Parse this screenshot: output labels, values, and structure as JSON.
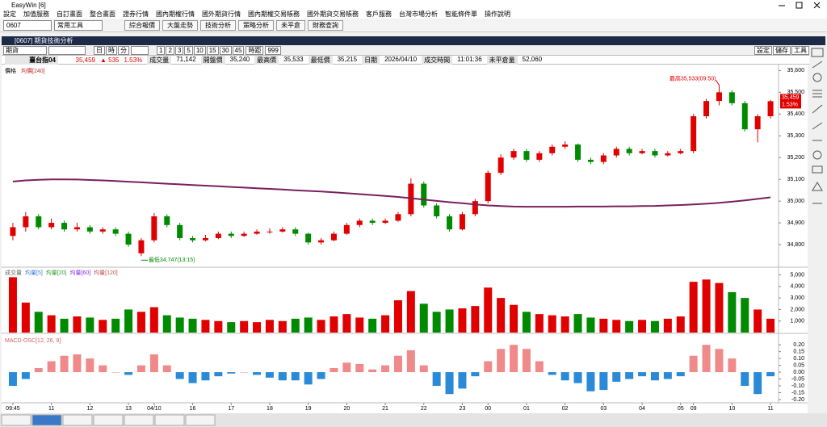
{
  "window": {
    "title": "EasyWin [6]"
  },
  "menu": [
    "設定",
    "加值服務",
    "自訂畫面",
    "整合畫面",
    "證券行情",
    "國內期權行情",
    "國外期貨行情",
    "國內期權交易帳務",
    "國外期貨交易帳務",
    "客戶服務",
    "台灣市場分析",
    "智能條件單",
    "操作說明"
  ],
  "toolbar": {
    "code": "0607",
    "tool": "常用工具",
    "buttons": [
      "綜合報價",
      "大盤走勢",
      "技術分析",
      "策略分析",
      "未平倉",
      "財務查詢"
    ]
  },
  "subwindow": {
    "title": "[0607] 期貨技術分析",
    "kind": "期貨",
    "units": [
      "日",
      "時",
      "分"
    ],
    "periods": [
      "1",
      "2",
      "3",
      "5",
      "10",
      "15",
      "30",
      "45"
    ],
    "span_label": "時距",
    "span": "999",
    "right_buttons": [
      "設定",
      "儲存",
      "工具"
    ]
  },
  "quote": {
    "symbol": "臺台指04",
    "price": "35,459",
    "change": "▲ 535",
    "percent": "1.53%",
    "fields": [
      {
        "label": "成交量",
        "value": "71,142"
      },
      {
        "label": "開盤價",
        "value": "35,240"
      },
      {
        "label": "最高價",
        "value": "35,533"
      },
      {
        "label": "最低價",
        "value": "35,215"
      },
      {
        "label": "日期",
        "value": "2026/04/10"
      },
      {
        "label": "成交時間",
        "value": "11:01:36"
      },
      {
        "label": "未平倉量",
        "value": "52,060"
      }
    ]
  },
  "chart_data": [
    {
      "type": "candlestick",
      "title": "價格",
      "up_color": "#e00000",
      "down_color": "#008a00",
      "categories": [
        "09:45",
        null,
        null,
        "11",
        null,
        null,
        "12",
        null,
        null,
        "13",
        null,
        "04/10",
        null,
        null,
        "16",
        null,
        null,
        "17",
        null,
        null,
        "18",
        null,
        null,
        "19",
        null,
        null,
        "20",
        null,
        null,
        "21",
        null,
        null,
        "22",
        null,
        null,
        "23",
        null,
        "00",
        null,
        null,
        "01",
        null,
        null,
        "02",
        null,
        null,
        "03",
        null,
        null,
        "04",
        null,
        null,
        "05",
        "09",
        null,
        null,
        "10",
        null,
        null,
        "11"
      ],
      "open": [
        34840,
        34880,
        34930,
        34880,
        34900,
        34870,
        34880,
        34860,
        34870,
        34850,
        34760,
        34820,
        34930,
        34890,
        34830,
        34820,
        34830,
        34850,
        34840,
        34850,
        34860,
        34860,
        34870,
        34850,
        34810,
        34820,
        34850,
        34890,
        34910,
        34900,
        34910,
        34940,
        35080,
        34980,
        34930,
        34870,
        34940,
        35000,
        35130,
        35200,
        35230,
        35190,
        35220,
        35250,
        35260,
        35190,
        35180,
        35210,
        35240,
        35220,
        35230,
        35210,
        35220,
        35230,
        35390,
        35460,
        35500,
        35450,
        35330,
        35390
      ],
      "high": [
        34900,
        34950,
        34940,
        34920,
        34910,
        34900,
        34890,
        34880,
        34880,
        34860,
        34830,
        34945,
        34940,
        34900,
        34840,
        34845,
        34860,
        34860,
        34860,
        34870,
        34875,
        34880,
        34880,
        34855,
        34830,
        34860,
        34900,
        34920,
        34920,
        34920,
        34950,
        35105,
        35090,
        34990,
        34940,
        34950,
        35010,
        35140,
        35215,
        35240,
        35240,
        35230,
        35260,
        35275,
        35265,
        35200,
        35220,
        35250,
        35250,
        35240,
        35240,
        35230,
        35240,
        35400,
        35470,
        35533,
        35510,
        35460,
        35400,
        35465
      ],
      "low": [
        34820,
        34860,
        34870,
        34870,
        34860,
        34860,
        34850,
        34850,
        34840,
        34790,
        34747,
        34810,
        34880,
        34820,
        34810,
        34815,
        34825,
        34830,
        34835,
        34845,
        34850,
        34855,
        34840,
        34800,
        34800,
        34815,
        34845,
        34880,
        34890,
        34895,
        34905,
        34930,
        34970,
        34920,
        34860,
        34865,
        34930,
        34990,
        35120,
        35190,
        35180,
        35180,
        35210,
        35240,
        35180,
        35170,
        35170,
        35200,
        35210,
        35215,
        35200,
        35205,
        35215,
        35220,
        35380,
        35440,
        35440,
        35320,
        35270,
        35380
      ],
      "close": [
        34880,
        34930,
        34880,
        34900,
        34870,
        34880,
        34860,
        34870,
        34850,
        34800,
        34820,
        34930,
        34890,
        34830,
        34820,
        34830,
        34850,
        34840,
        34850,
        34860,
        34860,
        34870,
        34850,
        34810,
        34820,
        34850,
        34890,
        34910,
        34900,
        34910,
        34940,
        35080,
        34980,
        34930,
        34870,
        34940,
        35000,
        35130,
        35200,
        35230,
        35190,
        35220,
        35250,
        35260,
        35190,
        35180,
        35210,
        35240,
        35220,
        35230,
        35210,
        35220,
        35230,
        35390,
        35460,
        35500,
        35450,
        35330,
        35390,
        35459
      ],
      "ma": {
        "name": "均價[240]",
        "color": "#7a1f5c",
        "values": [
          35090,
          35095,
          35098,
          35100,
          35100,
          35099,
          35097,
          35095,
          35092,
          35089,
          35086,
          35083,
          35080,
          35077,
          35074,
          35071,
          35068,
          35065,
          35062,
          35059,
          35056,
          35053,
          35050,
          35047,
          35044,
          35040,
          35036,
          35032,
          35028,
          35024,
          35019,
          35013,
          35007,
          35001,
          34995,
          34990,
          34985,
          34980,
          34977,
          34975,
          34974,
          34974,
          34974,
          34974,
          34975,
          34975,
          34975,
          34976,
          34976,
          34977,
          34978,
          34980,
          34982,
          34985,
          34988,
          34992,
          34997,
          35003,
          35010,
          35017
        ]
      },
      "annotations": {
        "high": "最高35,533(09:50)",
        "low": "最低34,747(13:15)"
      },
      "last_label": [
        "35,459",
        "1.53%"
      ],
      "ylim": [
        34700,
        35620
      ],
      "yticks": [
        {
          "value": 34800,
          "label": "34,800"
        },
        {
          "value": 34900,
          "label": "34,900"
        },
        {
          "value": 35000,
          "label": "35,000"
        },
        {
          "value": 35100,
          "label": "35,100"
        },
        {
          "value": 35200,
          "label": "35,200"
        },
        {
          "value": 35300,
          "label": "35,300"
        },
        {
          "value": 35400,
          "label": "35,400"
        },
        {
          "value": 35500,
          "label": "35,500"
        },
        {
          "value": 35600,
          "label": "35,600"
        }
      ]
    },
    {
      "type": "bar",
      "legend": [
        {
          "name": "成交量",
          "color": "#607060"
        },
        {
          "name": "均量[5]",
          "color": "#3a7bd5"
        },
        {
          "name": "均量[20]",
          "color": "#2e9e2e"
        },
        {
          "name": "均量[60]",
          "color": "#8a2be2"
        },
        {
          "name": "均量[120]",
          "color": "#c05050"
        }
      ],
      "values": [
        4800,
        2600,
        1800,
        1500,
        1200,
        1400,
        1300,
        1100,
        1200,
        2000,
        1800,
        2200,
        1500,
        1300,
        1200,
        1100,
        1000,
        900,
        1000,
        900,
        1100,
        1000,
        1200,
        1300,
        1100,
        1400,
        1600,
        1300,
        1200,
        1500,
        2800,
        3600,
        2500,
        1800,
        2000,
        2100,
        2300,
        3900,
        3000,
        2400,
        1800,
        1600,
        1500,
        1400,
        1600,
        1300,
        1200,
        1100,
        1000,
        1100,
        1000,
        1200,
        1400,
        4400,
        4600,
        4300,
        3500,
        3000,
        2000,
        1200
      ],
      "ylim": [
        0,
        5600
      ],
      "yticks": [
        {
          "value": 1000,
          "label": "1,000"
        },
        {
          "value": 2000,
          "label": "2,000"
        },
        {
          "value": 3000,
          "label": "3,000"
        },
        {
          "value": 4000,
          "label": "4,000"
        },
        {
          "value": 5000,
          "label": "5,000"
        }
      ]
    },
    {
      "type": "bar",
      "title": "MACD-OSC[12, 26, 9]",
      "pos_color": "#f08a8a",
      "neg_color": "#2a8ad8",
      "values": [
        -0.1,
        -0.05,
        0.03,
        0.08,
        0.12,
        0.13,
        0.1,
        0.05,
        0.0,
        -0.02,
        0.05,
        0.13,
        0.05,
        -0.05,
        -0.08,
        -0.06,
        -0.03,
        -0.01,
        0.0,
        -0.02,
        -0.04,
        -0.06,
        -0.06,
        -0.09,
        -0.05,
        0.03,
        0.07,
        0.06,
        0.02,
        0.05,
        0.12,
        0.16,
        0.05,
        -0.1,
        -0.16,
        -0.12,
        -0.03,
        0.08,
        0.17,
        0.2,
        0.17,
        0.08,
        -0.02,
        -0.06,
        -0.08,
        -0.14,
        -0.13,
        -0.07,
        -0.05,
        -0.03,
        -0.06,
        -0.05,
        -0.03,
        0.12,
        0.2,
        0.17,
        0.1,
        -0.1,
        -0.16,
        -0.03
      ],
      "ylim": [
        -0.218,
        0.266
      ],
      "yticks": [
        {
          "value": 0.2,
          "label": "0.20"
        },
        {
          "value": 0.15,
          "label": "0.15"
        },
        {
          "value": 0.1,
          "label": "0.10"
        },
        {
          "value": 0.05,
          "label": "0.05"
        },
        {
          "value": 0,
          "label": "0.00"
        },
        {
          "value": -0.05,
          "label": "-0.05"
        },
        {
          "value": -0.1,
          "label": "-0.10"
        },
        {
          "value": -0.15,
          "label": "-0.15"
        },
        {
          "value": -0.2,
          "label": "-0.20"
        }
      ]
    }
  ]
}
